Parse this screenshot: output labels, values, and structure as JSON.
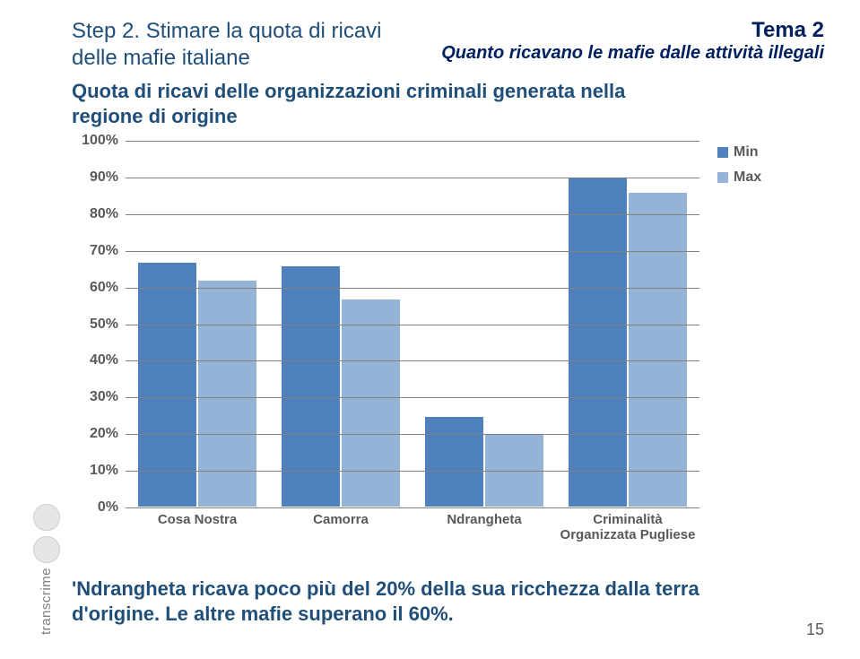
{
  "header": {
    "title_left": "Step 2. Stimare la quota di ricavi delle mafie italiane",
    "tema": "Tema 2",
    "tema_sub": "Quanto ricavano le mafie dalle attività illegali"
  },
  "subtitle": "Quota di ricavi delle organizzazioni criminali generata nella regione di origine",
  "chart": {
    "type": "bar",
    "ylim": [
      0,
      100
    ],
    "ytick_step": 10,
    "y_suffix": "%",
    "grid_color": "#808080",
    "background_color": "#ffffff",
    "label_color": "#595959",
    "label_fontsize": 16,
    "categories": [
      "Cosa Nostra",
      "Camorra",
      "Ndrangheta",
      "Criminalità Organizzata Pugliese"
    ],
    "series": [
      {
        "name": "Min",
        "color": "#4f81bd",
        "values": [
          67,
          66,
          25,
          90
        ]
      },
      {
        "name": "Max",
        "color": "#95b3d7",
        "values": [
          62,
          57,
          20,
          86
        ]
      }
    ],
    "bar_width_pct": 42
  },
  "legend": {
    "items": [
      {
        "label": "Min",
        "color": "#4f81bd"
      },
      {
        "label": "Max",
        "color": "#95b3d7"
      }
    ]
  },
  "caption": "'Ndrangheta ricava poco più del 20% della sua ricchezza dalla terra d'origine. Le altre mafie superano il 60%.",
  "page_number": "15",
  "side_brand": "transcrime"
}
